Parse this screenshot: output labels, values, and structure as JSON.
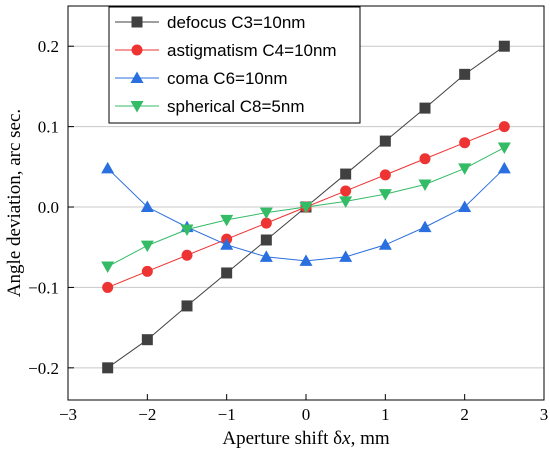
{
  "chart_data": {
    "type": "line",
    "xlabel_prefix": "Aperture shift δ",
    "xlabel_var": "x",
    "xlabel_suffix": ", mm",
    "ylabel": "Angle deviation, arc sec.",
    "xlim": [
      -3,
      3
    ],
    "ylim": [
      -0.24,
      0.25
    ],
    "xticks": [
      -3,
      -2,
      -1,
      0,
      1,
      2,
      3
    ],
    "xtick_labels": [
      "−3",
      "−2",
      "−1",
      "0",
      "1",
      "2",
      "3"
    ],
    "yticks": [
      -0.2,
      -0.1,
      0.0,
      0.1,
      0.2
    ],
    "ytick_labels": [
      "−0.2",
      "−0.1",
      "0.0",
      "0.1",
      "0.2"
    ],
    "grid": "horizontal",
    "legend_position": "top-left",
    "x": [
      -2.5,
      -2.0,
      -1.5,
      -1.0,
      -0.5,
      0.0,
      0.5,
      1.0,
      1.5,
      2.0,
      2.5
    ],
    "series": [
      {
        "name": "defocus C3=10nm",
        "marker": "square",
        "color": "#404040",
        "values": [
          -0.2,
          -0.165,
          -0.123,
          -0.082,
          -0.041,
          0.0,
          0.041,
          0.082,
          0.123,
          0.165,
          0.2
        ]
      },
      {
        "name": "astigmatism C4=10nm",
        "marker": "circle",
        "color": "#ee3333",
        "values": [
          -0.1,
          -0.08,
          -0.06,
          -0.04,
          -0.02,
          0.0,
          0.02,
          0.04,
          0.06,
          0.08,
          0.1
        ]
      },
      {
        "name": "coma C6=10nm",
        "marker": "triangle-up",
        "color": "#2a6fe0",
        "values": [
          0.048,
          0.0,
          -0.025,
          -0.047,
          -0.062,
          -0.067,
          -0.062,
          -0.047,
          -0.025,
          0.0,
          0.048
        ]
      },
      {
        "name": "spherical C8=5nm",
        "marker": "triangle-down",
        "color": "#33bb66",
        "values": [
          -0.074,
          -0.048,
          -0.028,
          -0.016,
          -0.007,
          0.0,
          0.007,
          0.016,
          0.028,
          0.048,
          0.074
        ]
      }
    ]
  }
}
